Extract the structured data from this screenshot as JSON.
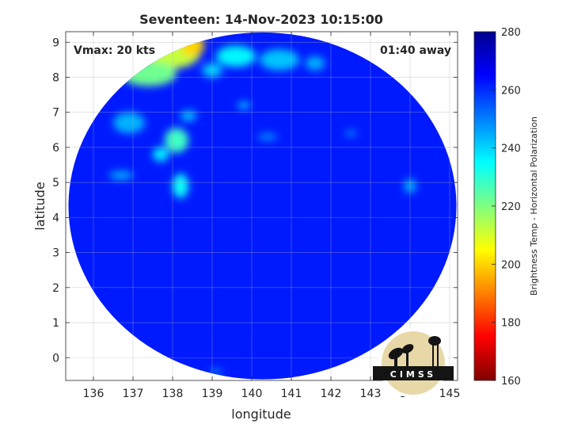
{
  "chart_data": {
    "type": "heatmap",
    "title": "Seventeen: 14-Nov-2023 10:15:00",
    "xlabel": "longitude",
    "ylabel": "latitude",
    "xlim": [
      135.3,
      145.2
    ],
    "ylim": [
      -0.65,
      9.3
    ],
    "xticks": [
      "136",
      "137",
      "138",
      "139",
      "140",
      "141",
      "142",
      "143",
      "144",
      "145"
    ],
    "yticks": [
      "0",
      "1",
      "2",
      "3",
      "4",
      "5",
      "6",
      "7",
      "8",
      "9"
    ],
    "grid": true,
    "annotations": {
      "vmax": "Vmax: 20 kts",
      "away": "01:40 away"
    },
    "colorbar": {
      "label": "Brightness Temp - Horizontal Polarization",
      "range": [
        160,
        280
      ],
      "ticks": [
        "160",
        "180",
        "200",
        "220",
        "240",
        "260",
        "280"
      ]
    },
    "swath": {
      "center": [
        140.27,
        4.33
      ],
      "rx": 4.9,
      "ry": 4.95
    },
    "background_value": 262,
    "features": [
      {
        "lon": 138.0,
        "lat": 8.7,
        "rx": 0.7,
        "ry": 0.45,
        "value": 212
      },
      {
        "lon": 137.4,
        "lat": 8.1,
        "rx": 0.7,
        "ry": 0.35,
        "value": 222
      },
      {
        "lon": 138.5,
        "lat": 8.9,
        "rx": 0.3,
        "ry": 0.3,
        "value": 200
      },
      {
        "lon": 139.6,
        "lat": 8.6,
        "rx": 0.5,
        "ry": 0.3,
        "value": 236
      },
      {
        "lon": 140.7,
        "lat": 8.5,
        "rx": 0.5,
        "ry": 0.3,
        "value": 242
      },
      {
        "lon": 139.0,
        "lat": 8.2,
        "rx": 0.25,
        "ry": 0.2,
        "value": 240
      },
      {
        "lon": 141.6,
        "lat": 8.4,
        "rx": 0.25,
        "ry": 0.2,
        "value": 244
      },
      {
        "lon": 138.1,
        "lat": 6.2,
        "rx": 0.3,
        "ry": 0.35,
        "value": 228
      },
      {
        "lon": 138.2,
        "lat": 4.9,
        "rx": 0.2,
        "ry": 0.35,
        "value": 234
      },
      {
        "lon": 137.7,
        "lat": 5.8,
        "rx": 0.2,
        "ry": 0.2,
        "value": 236
      },
      {
        "lon": 136.9,
        "lat": 6.7,
        "rx": 0.4,
        "ry": 0.3,
        "value": 244
      },
      {
        "lon": 136.7,
        "lat": 5.2,
        "rx": 0.3,
        "ry": 0.12,
        "value": 244
      },
      {
        "lon": 138.4,
        "lat": 6.9,
        "rx": 0.2,
        "ry": 0.15,
        "value": 242
      },
      {
        "lon": 139.8,
        "lat": 7.2,
        "rx": 0.15,
        "ry": 0.1,
        "value": 240
      },
      {
        "lon": 144.0,
        "lat": 4.9,
        "rx": 0.15,
        "ry": 0.2,
        "value": 244
      },
      {
        "lon": 140.4,
        "lat": 6.3,
        "rx": 0.25,
        "ry": 0.1,
        "value": 248
      },
      {
        "lon": 142.5,
        "lat": 6.4,
        "rx": 0.15,
        "ry": 0.1,
        "value": 250
      },
      {
        "lon": 139.1,
        "lat": -0.4,
        "rx": 0.15,
        "ry": 0.06,
        "value": 244
      }
    ],
    "logo": "CIMSS"
  }
}
